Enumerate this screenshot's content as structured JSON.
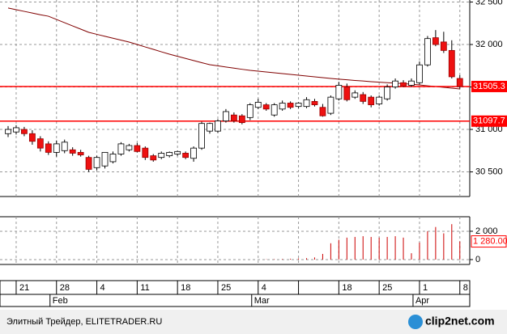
{
  "chart_data": {
    "type": "candlestick",
    "open": [
      30950,
      30970,
      31000,
      30950,
      30890,
      30830,
      30730,
      30750,
      30760,
      30730,
      30670,
      30550,
      30570,
      30620,
      30710,
      30760,
      30810,
      30780,
      30690,
      30670,
      30690,
      30710,
      30720,
      30660,
      30780,
      30980,
      30980,
      31100,
      31170,
      31160,
      31140,
      31260,
      31290,
      31170,
      31240,
      31310,
      31270,
      31270,
      31330,
      31260,
      31190,
      31360,
      31500,
      31380,
      31410,
      31380,
      31300,
      31360,
      31500,
      31550,
      31520,
      31550,
      31760,
      32080,
      32030,
      31930,
      31600
    ],
    "high": [
      31040,
      31050,
      31030,
      30990,
      30920,
      30860,
      30870,
      30880,
      30790,
      30760,
      30690,
      30690,
      30730,
      30740,
      30850,
      30830,
      30840,
      30800,
      30710,
      30740,
      30740,
      30750,
      30740,
      30800,
      31090,
      31080,
      31120,
      31240,
      31200,
      31180,
      31310,
      31360,
      31310,
      31310,
      31340,
      31330,
      31320,
      31380,
      31360,
      31300,
      31400,
      31560,
      31540,
      31460,
      31440,
      31400,
      31400,
      31530,
      31600,
      31580,
      31600,
      31800,
      32100,
      32170,
      32150,
      32050,
      31640
    ],
    "low": [
      30910,
      30940,
      30920,
      30820,
      30740,
      30700,
      30680,
      30720,
      30690,
      30680,
      30500,
      30520,
      30540,
      30600,
      30690,
      30740,
      30730,
      30640,
      30620,
      30650,
      30670,
      30690,
      30650,
      30620,
      30760,
      30950,
      30960,
      31080,
      31080,
      31060,
      31110,
      31240,
      31220,
      31150,
      31220,
      31240,
      31250,
      31250,
      31270,
      31150,
      31170,
      31340,
      31330,
      31360,
      31300,
      31260,
      31280,
      31340,
      31480,
      31500,
      31500,
      31530,
      31740,
      31980,
      31900,
      31600,
      31480
    ],
    "close": [
      31000,
      31020,
      30950,
      30860,
      30780,
      30730,
      30830,
      30850,
      30720,
      30700,
      30530,
      30670,
      30730,
      30710,
      30830,
      30810,
      30740,
      30670,
      30640,
      30720,
      30730,
      30740,
      30670,
      30780,
      31070,
      31070,
      31100,
      31210,
      31100,
      31080,
      31290,
      31320,
      31240,
      31290,
      31310,
      31260,
      31310,
      31350,
      31290,
      31160,
      31380,
      31520,
      31350,
      31430,
      31330,
      31290,
      31380,
      31500,
      31570,
      31510,
      31570,
      31760,
      32070,
      32000,
      31930,
      31620,
      31505.3
    ],
    "ma": [
      32430,
      32410,
      32390,
      32370,
      32350,
      32333,
      32295,
      32257,
      32219,
      32181,
      32143,
      32120,
      32097,
      32074,
      32051,
      32029,
      32000,
      31971,
      31943,
      31914,
      31886,
      31861,
      31836,
      31811,
      31786,
      31762,
      31749,
      31735,
      31722,
      31708,
      31695,
      31686,
      31676,
      31667,
      31657,
      31648,
      31638,
      31629,
      31619,
      31610,
      31600,
      31592,
      31585,
      31577,
      31570,
      31562,
      31556,
      31550,
      31545,
      31539,
      31533,
      31524,
      31514,
      31505,
      31495,
      31486,
      31476
    ],
    "volume": [
      0,
      0,
      0,
      0,
      0,
      0,
      0,
      0,
      0,
      0,
      0,
      0,
      0,
      0,
      0,
      0,
      0,
      0,
      0,
      0,
      0,
      0,
      0,
      0,
      0,
      0,
      0,
      0,
      0,
      0,
      0,
      0,
      20,
      30,
      40,
      60,
      80,
      100,
      150,
      400,
      1150,
      1400,
      1550,
      1600,
      1650,
      1600,
      1550,
      1600,
      1650,
      1550,
      450,
      1200,
      2000,
      2300,
      1850,
      2500,
      1280
    ],
    "ylim": [
      30210,
      32524
    ],
    "yticks": [
      {
        "value": 30500,
        "label": "30 500"
      },
      {
        "value": 31000,
        "label": "31 000"
      },
      {
        "value": 31500,
        "label": "31 500"
      },
      {
        "value": 32000,
        "label": "32 000"
      },
      {
        "value": 32500,
        "label": "32 500"
      }
    ],
    "levels": [
      31505.3,
      31097.7
    ],
    "vlim": [
      -230,
      2910
    ],
    "vticks": [
      {
        "value": 2000,
        "label": "2 000"
      },
      0
    ],
    "volume_level": {
      "value": 1280,
      "label": "1 280.00"
    },
    "xticks": [
      {
        "value": 1,
        "label": "21"
      },
      {
        "value": 6,
        "label": "28"
      },
      {
        "value": 11,
        "label": "4"
      },
      {
        "value": 16,
        "label": "11"
      },
      {
        "value": 21,
        "label": "18"
      },
      {
        "value": 26,
        "label": "25"
      },
      {
        "value": 31,
        "label": "4"
      },
      {
        "value": 36,
        "label": null
      },
      {
        "value": 41,
        "label": "18"
      },
      {
        "value": 46,
        "label": "25"
      },
      {
        "value": 51,
        "label": "1"
      },
      {
        "value": 56,
        "label": "8"
      }
    ],
    "months": [
      {
        "value": 6,
        "label": "Feb"
      },
      {
        "value": 31,
        "label": "Mar"
      },
      {
        "value": 51,
        "label": "Apr"
      }
    ],
    "up_color": "#ffffff",
    "down_color": "#ee1111",
    "ma_color": "#800000",
    "level_color": "#ff0000",
    "volume_color": "#cc0000",
    "grid": true
  },
  "footer": {
    "source": "Элитный Трейдер, ELITETRADER.RU",
    "logo": "clip2net.com"
  }
}
